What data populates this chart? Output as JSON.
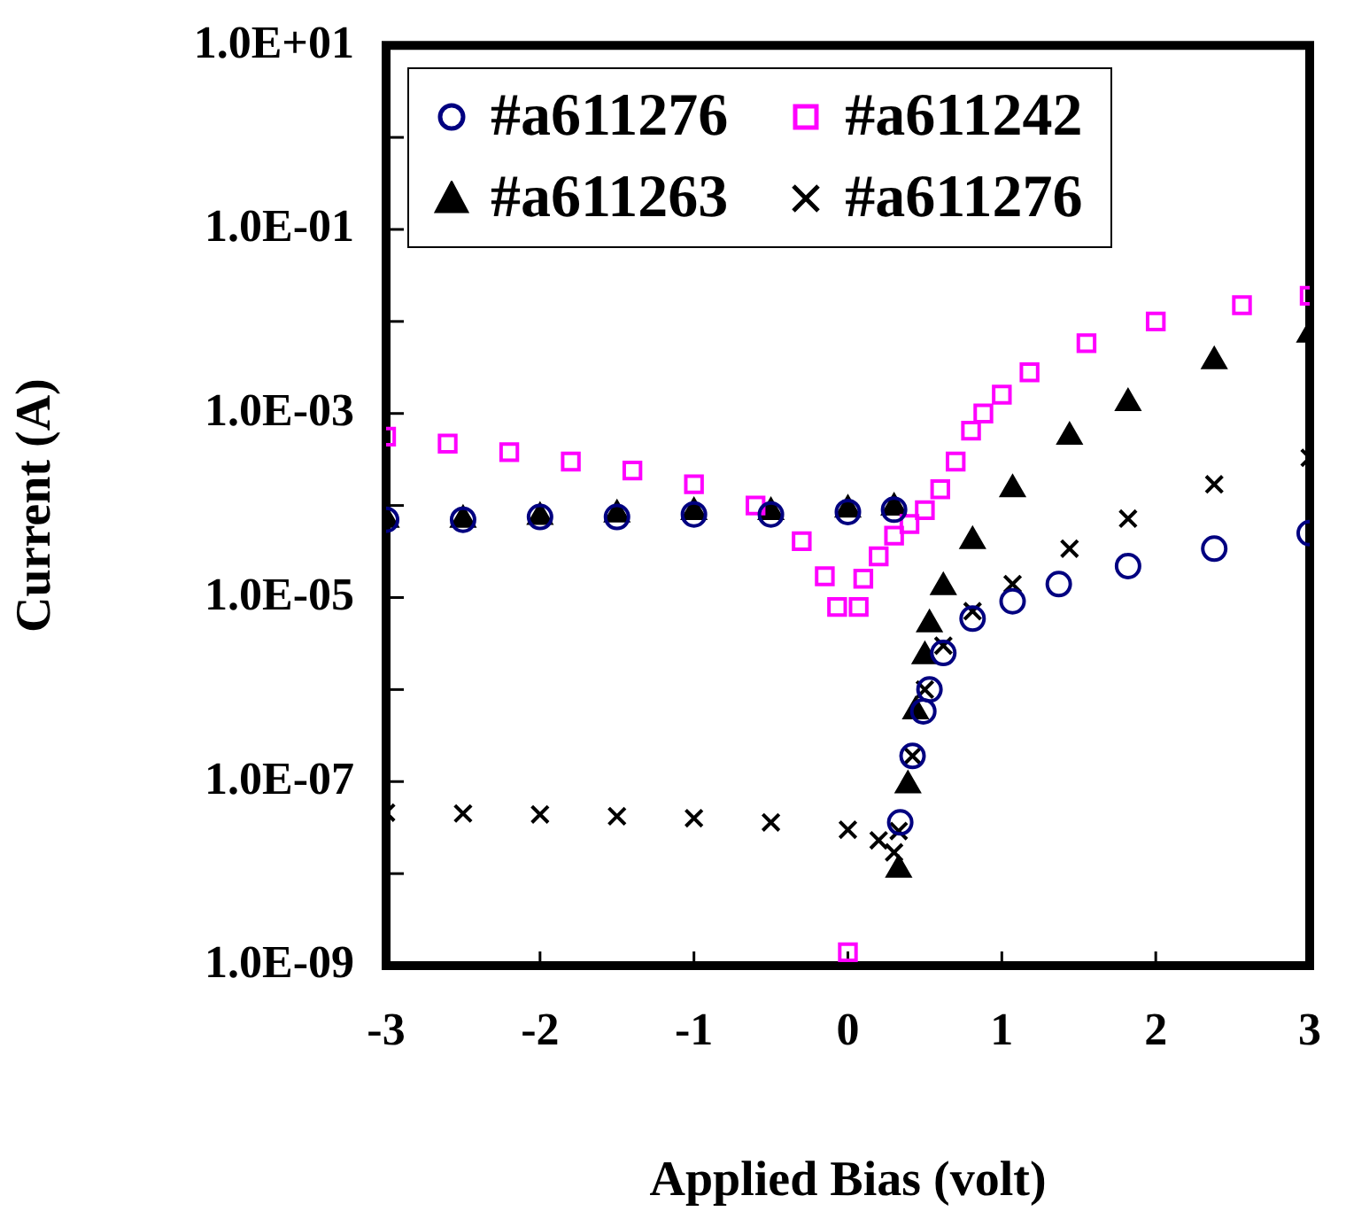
{
  "chart_data": {
    "type": "scatter",
    "xlabel": "Applied Bias (volt)",
    "ylabel": "Current (A)",
    "log": "y",
    "grid": false,
    "legend": "top left",
    "xlim": [
      -3,
      3
    ],
    "xticks": [
      -3,
      -2,
      -1,
      0,
      1,
      2,
      3
    ],
    "ylim": [
      1e-09,
      10
    ],
    "yticks": [
      {
        "value": 1e-09,
        "label": "1.0E-09"
      },
      {
        "value": 1e-08,
        "label": null
      },
      {
        "value": 1e-07,
        "label": "1.0E-07"
      },
      {
        "value": 1e-06,
        "label": null
      },
      {
        "value": 1e-05,
        "label": "1.0E-05"
      },
      {
        "value": 0.0001,
        "label": null
      },
      {
        "value": 0.001,
        "label": "1.0E-03"
      },
      {
        "value": 0.01,
        "label": null
      },
      {
        "value": 0.1,
        "label": "1.0E-01"
      },
      {
        "value": 1,
        "label": null
      },
      {
        "value": 10,
        "label": "1.0E+01"
      }
    ],
    "series": [
      {
        "name": "#a611276",
        "color": "#000080",
        "marker": "circle",
        "x": [
          -3,
          -2.5,
          -2,
          -1.5,
          -1,
          -0.5,
          0,
          0.3,
          0.34,
          0.42,
          0.49,
          0.53,
          0.62,
          0.81,
          1.07,
          1.37,
          1.82,
          2.38,
          3
        ],
        "values": [
          7e-05,
          7e-05,
          7.5e-05,
          7.5e-05,
          8e-05,
          8e-05,
          8.5e-05,
          9e-05,
          3.6e-08,
          1.9e-07,
          5.8e-07,
          1e-06,
          2.5e-06,
          5.9e-06,
          9.1e-06,
          1.4e-05,
          2.2e-05,
          3.4e-05,
          5e-05
        ]
      },
      {
        "name": "#a611242",
        "color": "#ff00ff",
        "marker": "square",
        "x": [
          -3,
          -2.6,
          -2.2,
          -1.8,
          -1.4,
          -1,
          -0.6,
          -0.3,
          -0.15,
          -0.07,
          0,
          0.07,
          0.1,
          0.2,
          0.3,
          0.4,
          0.5,
          0.6,
          0.7,
          0.8,
          0.88,
          1,
          1.18,
          1.55,
          2,
          2.56,
          3
        ],
        "values": [
          0.00056,
          0.00047,
          0.00038,
          0.0003,
          0.00024,
          0.00017,
          0.0001,
          4.1e-05,
          1.7e-05,
          7.9e-06,
          1.4e-09,
          7.9e-06,
          1.6e-05,
          2.8e-05,
          4.7e-05,
          6.3e-05,
          8.9e-05,
          0.00015,
          0.0003,
          0.00065,
          0.001,
          0.0016,
          0.0028,
          0.0058,
          0.01,
          0.015,
          0.019
        ]
      },
      {
        "name": "#a611263",
        "color": "#000000",
        "marker": "triangle",
        "x": [
          -3,
          -2.5,
          -2,
          -1.5,
          -1,
          -0.5,
          0,
          0.3,
          0.33,
          0.39,
          0.44,
          0.5,
          0.53,
          0.62,
          0.81,
          1.07,
          1.44,
          1.82,
          2.38,
          3
        ],
        "values": [
          7e-05,
          7e-05,
          7.5e-05,
          8e-05,
          8.5e-05,
          8.5e-05,
          9e-05,
          9.5e-05,
          1.1e-08,
          9.1e-08,
          5.8e-07,
          2.3e-06,
          5.1e-06,
          1.3e-05,
          4.1e-05,
          0.00015,
          0.00056,
          0.0013,
          0.0037,
          0.0072
        ]
      },
      {
        "name": "#a611276",
        "color": "#000000",
        "marker": "cross",
        "x": [
          -3,
          -2.5,
          -2,
          -1.5,
          -1,
          -0.5,
          0,
          0.2,
          0.3,
          0.33,
          0.42,
          0.5,
          0.62,
          0.81,
          1.07,
          1.44,
          1.82,
          2.38,
          3
        ],
        "values": [
          4.6e-08,
          4.5e-08,
          4.4e-08,
          4.2e-08,
          4e-08,
          3.6e-08,
          3e-08,
          2.3e-08,
          1.7e-08,
          2.9e-08,
          1.9e-07,
          1e-06,
          3e-06,
          7.1e-06,
          1.4e-05,
          3.4e-05,
          7.2e-05,
          0.00017,
          0.00033
        ]
      }
    ]
  }
}
